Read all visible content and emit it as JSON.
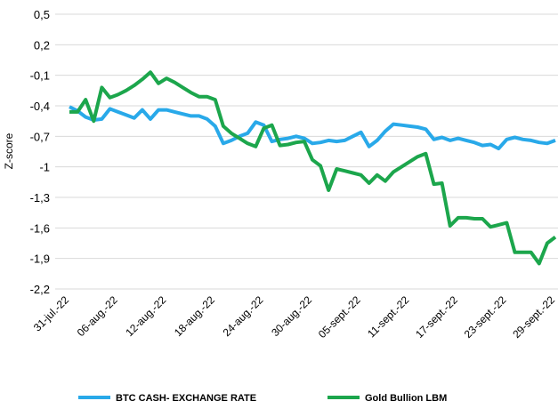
{
  "chart_data": {
    "type": "line",
    "y_label": "Z-score",
    "categories": [
      "31-jul.-22",
      null,
      null,
      null,
      null,
      null,
      "06-aug.-22",
      null,
      null,
      null,
      null,
      null,
      "12-aug.-22",
      null,
      null,
      null,
      null,
      null,
      "18-aug.-22",
      null,
      null,
      null,
      null,
      null,
      "24-aug.-22",
      null,
      null,
      null,
      null,
      null,
      "30-aug.-22",
      null,
      null,
      null,
      null,
      null,
      "05-sept.-22",
      null,
      null,
      null,
      null,
      null,
      "11-sept.-22",
      null,
      null,
      null,
      null,
      null,
      "17-sept.-22",
      null,
      null,
      null,
      null,
      null,
      "23-sept.-22",
      null,
      null,
      null,
      null,
      null,
      "29-sept.-22"
    ],
    "series": [
      {
        "name": "BTC CASH- EXCHANGE RATE",
        "color": "#29a9e9",
        "values": [
          -0.41,
          -0.45,
          -0.51,
          -0.54,
          -0.53,
          -0.43,
          -0.46,
          -0.49,
          -0.52,
          -0.44,
          -0.53,
          -0.44,
          -0.44,
          -0.46,
          -0.48,
          -0.5,
          -0.5,
          -0.53,
          -0.6,
          -0.77,
          -0.74,
          -0.7,
          -0.67,
          -0.56,
          -0.59,
          -0.75,
          -0.73,
          -0.72,
          -0.7,
          -0.72,
          -0.77,
          -0.76,
          -0.74,
          -0.75,
          -0.74,
          -0.7,
          -0.66,
          -0.8,
          -0.74,
          -0.65,
          -0.58,
          -0.59,
          -0.6,
          -0.61,
          -0.63,
          -0.73,
          -0.71,
          -0.74,
          -0.72,
          -0.74,
          -0.76,
          -0.79,
          -0.78,
          -0.82,
          -0.73,
          -0.71,
          -0.73,
          -0.74,
          -0.76,
          -0.77,
          -0.74
        ]
      },
      {
        "name": "Gold Bullion LBM",
        "color": "#1ca64c",
        "values": [
          -0.46,
          -0.46,
          -0.34,
          -0.55,
          -0.22,
          -0.32,
          -0.29,
          -0.25,
          -0.2,
          -0.14,
          -0.07,
          -0.18,
          -0.13,
          -0.17,
          -0.22,
          -0.27,
          -0.31,
          -0.31,
          -0.34,
          -0.6,
          -0.67,
          -0.72,
          -0.77,
          -0.8,
          -0.62,
          -0.59,
          -0.79,
          -0.78,
          -0.76,
          -0.75,
          -0.93,
          -0.99,
          -1.23,
          -1.02,
          -1.04,
          -1.06,
          -1.08,
          -1.16,
          -1.08,
          -1.14,
          -1.05,
          -1.0,
          -0.95,
          -0.9,
          -0.87,
          -1.17,
          -1.16,
          -1.58,
          -1.5,
          -1.5,
          -1.51,
          -1.51,
          -1.59,
          -1.57,
          -1.55,
          -1.84,
          -1.84,
          -1.84,
          -1.95,
          -1.75,
          -1.69
        ]
      }
    ],
    "ylim": [
      -2.2,
      0.5
    ],
    "yticks": [
      {
        "value": 0.5,
        "label": "0,5"
      },
      {
        "value": 0.2,
        "label": "0,2"
      },
      {
        "value": -0.1,
        "label": "-0,1"
      },
      {
        "value": -0.4,
        "label": "-0,4"
      },
      {
        "value": -0.7,
        "label": "-0,7"
      },
      -1,
      {
        "value": -1.3,
        "label": "-1,3"
      },
      {
        "value": -1.6,
        "label": "-1,6"
      },
      {
        "value": -1.9,
        "label": "-1,9"
      },
      {
        "value": -2.2,
        "label": "-2,2"
      }
    ],
    "grid": true,
    "legend": "bottom"
  }
}
